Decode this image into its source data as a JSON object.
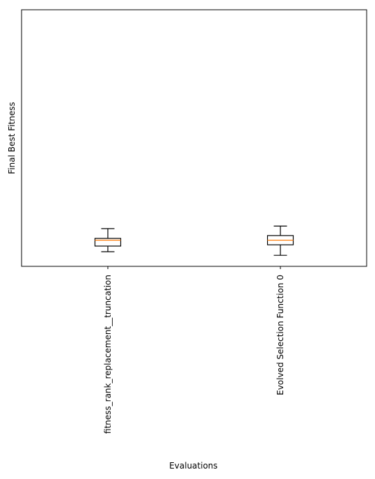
{
  "chart_data": {
    "type": "box",
    "xlabel": "Evaluations",
    "ylabel": "Final Best Fitness",
    "categories": [
      "fitness_rank_replacement__truncation",
      "Evolved Selection Function 0"
    ],
    "ylim": [
      0,
      100
    ],
    "yticks_visible": false,
    "grid": false,
    "boxes": [
      {
        "category": "fitness_rank_replacement__truncation",
        "whisker_low": 5.7,
        "q1": 7.9,
        "median": 10.2,
        "q3": 10.9,
        "whisker_high": 14.7
      },
      {
        "category": "Evolved Selection Function 0",
        "whisker_low": 4.3,
        "q1": 8.4,
        "median": 10.2,
        "q3": 12.0,
        "whisker_high": 15.7
      }
    ],
    "colors": {
      "median": "#ff7f0e",
      "box": "#000000",
      "axes": "#000000"
    }
  }
}
